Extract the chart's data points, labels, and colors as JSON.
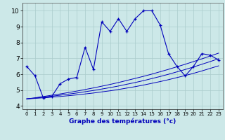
{
  "xlabel": "Graphe des températures (°c)",
  "xlim": [
    -0.5,
    23.5
  ],
  "ylim": [
    3.8,
    10.5
  ],
  "xticks": [
    0,
    1,
    2,
    3,
    4,
    5,
    6,
    7,
    8,
    9,
    10,
    11,
    12,
    13,
    14,
    15,
    16,
    17,
    18,
    19,
    20,
    21,
    22,
    23
  ],
  "yticks": [
    4,
    5,
    6,
    7,
    8,
    9,
    10
  ],
  "bg_color": "#cce8e8",
  "line_color": "#0000bb",
  "main_line": [
    6.5,
    5.9,
    4.5,
    4.6,
    5.4,
    5.7,
    5.8,
    7.7,
    6.3,
    9.3,
    8.7,
    9.5,
    8.7,
    9.5,
    10.0,
    10.0,
    9.1,
    7.3,
    6.5,
    5.9,
    6.5,
    7.3,
    7.2,
    6.9
  ],
  "reg_line1": [
    4.45,
    4.48,
    4.52,
    4.56,
    4.6,
    4.65,
    4.7,
    4.76,
    4.82,
    4.89,
    4.96,
    5.04,
    5.13,
    5.22,
    5.32,
    5.43,
    5.54,
    5.66,
    5.79,
    5.92,
    6.06,
    6.21,
    6.37,
    6.53
  ],
  "reg_line2": [
    4.45,
    4.5,
    4.56,
    4.62,
    4.68,
    4.75,
    4.82,
    4.9,
    4.98,
    5.07,
    5.16,
    5.26,
    5.37,
    5.48,
    5.6,
    5.73,
    5.86,
    6.0,
    6.15,
    6.3,
    6.46,
    6.63,
    6.8,
    6.98
  ],
  "reg_line3": [
    4.45,
    4.52,
    4.6,
    4.68,
    4.76,
    4.85,
    4.94,
    5.04,
    5.14,
    5.25,
    5.36,
    5.48,
    5.61,
    5.74,
    5.87,
    6.01,
    6.16,
    6.31,
    6.47,
    6.63,
    6.8,
    6.97,
    7.15,
    7.33
  ],
  "xlabel_fontsize": 6.5,
  "tick_fontsize_x": 5.0,
  "tick_fontsize_y": 6.5,
  "grid_color": "#aacccc",
  "grid_lw": 0.5
}
